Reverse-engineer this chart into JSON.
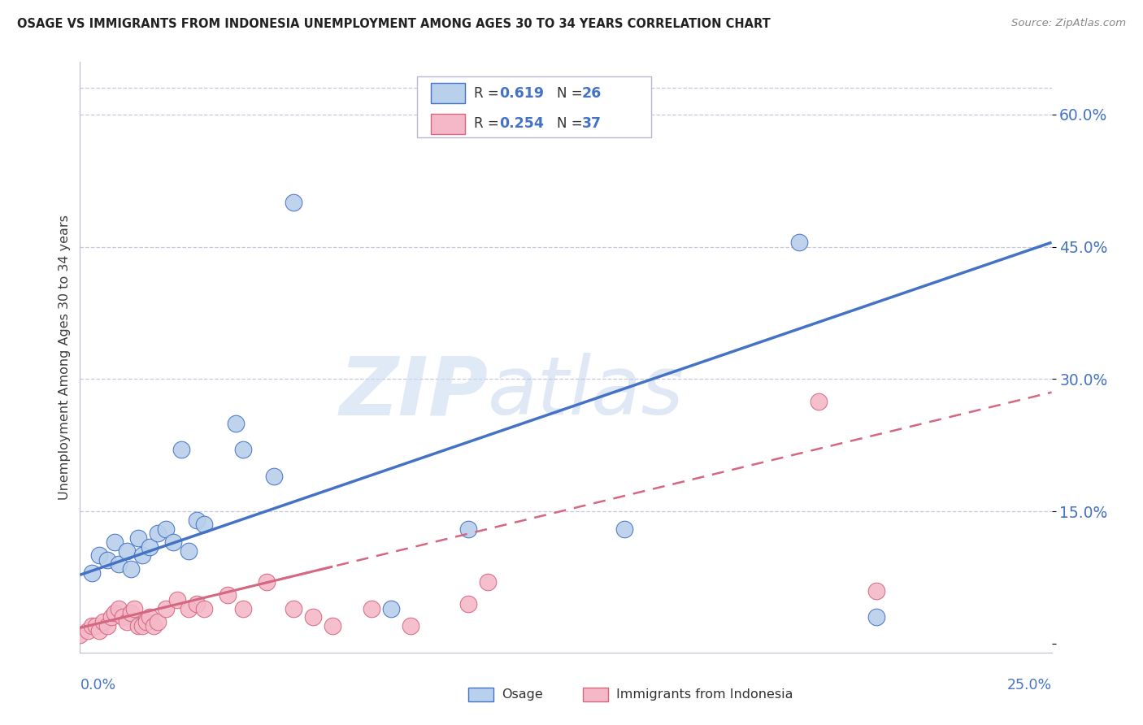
{
  "title": "OSAGE VS IMMIGRANTS FROM INDONESIA UNEMPLOYMENT AMONG AGES 30 TO 34 YEARS CORRELATION CHART",
  "source": "Source: ZipAtlas.com",
  "ylabel": "Unemployment Among Ages 30 to 34 years",
  "xlim": [
    0,
    0.25
  ],
  "ylim": [
    -0.01,
    0.66
  ],
  "yticks": [
    0.0,
    0.15,
    0.3,
    0.45,
    0.6
  ],
  "ytick_labels": [
    "",
    "15.0%",
    "30.0%",
    "45.0%",
    "60.0%"
  ],
  "osage_color": "#b8d0ea",
  "indonesia_color": "#f5b8c8",
  "osage_line_color": "#4472c4",
  "indonesia_line_color": "#d46880",
  "watermark_zip": "ZIP",
  "watermark_atlas": "atlas",
  "background_color": "#ffffff",
  "grid_color": "#c8c8dc",
  "title_color": "#222222",
  "tick_label_color": "#4472c4",
  "osage_x": [
    0.003,
    0.005,
    0.007,
    0.009,
    0.01,
    0.012,
    0.013,
    0.015,
    0.016,
    0.018,
    0.02,
    0.022,
    0.024,
    0.026,
    0.028,
    0.03,
    0.032,
    0.04,
    0.042,
    0.05,
    0.055,
    0.08,
    0.1,
    0.14,
    0.185,
    0.205
  ],
  "osage_y": [
    0.08,
    0.1,
    0.095,
    0.115,
    0.09,
    0.105,
    0.085,
    0.12,
    0.1,
    0.11,
    0.125,
    0.13,
    0.115,
    0.22,
    0.105,
    0.14,
    0.135,
    0.25,
    0.22,
    0.19,
    0.5,
    0.04,
    0.13,
    0.13,
    0.455,
    0.03
  ],
  "indonesia_x": [
    0.0,
    0.002,
    0.003,
    0.004,
    0.005,
    0.006,
    0.007,
    0.008,
    0.009,
    0.01,
    0.011,
    0.012,
    0.013,
    0.014,
    0.015,
    0.016,
    0.017,
    0.018,
    0.019,
    0.02,
    0.022,
    0.025,
    0.028,
    0.03,
    0.032,
    0.038,
    0.042,
    0.048,
    0.055,
    0.06,
    0.065,
    0.075,
    0.085,
    0.1,
    0.105,
    0.19,
    0.205
  ],
  "indonesia_y": [
    0.01,
    0.015,
    0.02,
    0.02,
    0.015,
    0.025,
    0.02,
    0.03,
    0.035,
    0.04,
    0.03,
    0.025,
    0.035,
    0.04,
    0.02,
    0.02,
    0.025,
    0.03,
    0.02,
    0.025,
    0.04,
    0.05,
    0.04,
    0.045,
    0.04,
    0.055,
    0.04,
    0.07,
    0.04,
    0.03,
    0.02,
    0.04,
    0.02,
    0.045,
    0.07,
    0.275,
    0.06
  ],
  "osage_trendline_x0": 0.0,
  "osage_trendline_y0": 0.078,
  "osage_trendline_x1": 0.25,
  "osage_trendline_y1": 0.455,
  "indo_trendline_x0": 0.0,
  "indo_trendline_y0": 0.018,
  "indo_trendline_x1": 0.25,
  "indo_trendline_y1": 0.285
}
